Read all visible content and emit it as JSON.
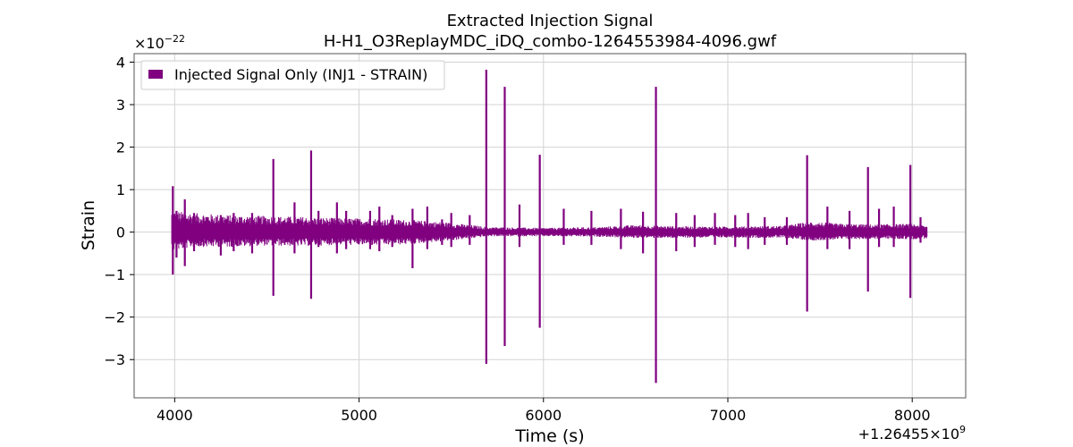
{
  "chart_data": {
    "type": "line",
    "title": "Extracted Injection Signal",
    "subtitle": "H-H1_O3ReplayMDC_iDQ_combo-1264553984-4096.gwf",
    "xlabel": "Time (s)",
    "ylabel": "Strain",
    "x_offset_label": "+1.26455×10",
    "x_offset_exp": "9",
    "y_scale_label": "×10",
    "y_scale_exp": "−22",
    "xlim": [
      3780,
      8290
    ],
    "ylim": [
      -3.9,
      4.2
    ],
    "x_ticks": [
      4000,
      5000,
      6000,
      7000,
      8000
    ],
    "x_tick_labels": [
      "4000",
      "5000",
      "6000",
      "7000",
      "8000"
    ],
    "y_ticks": [
      -3,
      -2,
      -1,
      0,
      1,
      2,
      3,
      4
    ],
    "y_tick_labels": [
      "−3",
      "−2",
      "−1",
      "0",
      "1",
      "2",
      "3",
      "4"
    ],
    "grid": true,
    "legend_position": "top-left",
    "color": "#800080",
    "series": [
      {
        "name": "Injected Signal Only (INJ1 - STRAIN)",
        "x_range": [
          3984,
          8080
        ],
        "band_upper": [
          [
            3984,
            0.5
          ],
          [
            4100,
            0.45
          ],
          [
            4300,
            0.4
          ],
          [
            4500,
            0.38
          ],
          [
            4700,
            0.36
          ],
          [
            4900,
            0.33
          ],
          [
            5100,
            0.32
          ],
          [
            5300,
            0.28
          ],
          [
            5500,
            0.22
          ],
          [
            5700,
            0.12
          ],
          [
            6000,
            0.1
          ],
          [
            6300,
            0.12
          ],
          [
            6500,
            0.17
          ],
          [
            6700,
            0.14
          ],
          [
            7000,
            0.13
          ],
          [
            7300,
            0.15
          ],
          [
            7450,
            0.25
          ],
          [
            7600,
            0.2
          ],
          [
            7800,
            0.18
          ],
          [
            8000,
            0.2
          ],
          [
            8080,
            0.15
          ]
        ],
        "band_lower": [
          [
            3984,
            -0.45
          ],
          [
            4100,
            -0.35
          ],
          [
            4300,
            -0.35
          ],
          [
            4500,
            -0.32
          ],
          [
            4700,
            -0.33
          ],
          [
            4900,
            -0.3
          ],
          [
            5100,
            -0.32
          ],
          [
            5300,
            -0.28
          ],
          [
            5500,
            -0.2
          ],
          [
            5700,
            -0.1
          ],
          [
            6000,
            -0.1
          ],
          [
            6300,
            -0.11
          ],
          [
            6500,
            -0.14
          ],
          [
            6700,
            -0.14
          ],
          [
            7000,
            -0.13
          ],
          [
            7300,
            -0.14
          ],
          [
            7450,
            -0.2
          ],
          [
            7600,
            -0.18
          ],
          [
            7800,
            -0.16
          ],
          [
            8000,
            -0.17
          ],
          [
            8080,
            -0.15
          ]
        ],
        "spikes": [
          [
            3990,
            1.08,
            -1.0
          ],
          [
            4010,
            0.5,
            -0.6
          ],
          [
            4055,
            0.77,
            -0.8
          ],
          [
            4105,
            0.45,
            -0.45
          ],
          [
            4250,
            0.4,
            -0.55
          ],
          [
            4320,
            0.45,
            -0.45
          ],
          [
            4420,
            0.45,
            -0.5
          ],
          [
            4535,
            1.72,
            -1.5
          ],
          [
            4650,
            0.7,
            -0.5
          ],
          [
            4740,
            1.92,
            -1.57
          ],
          [
            4780,
            0.5,
            -0.35
          ],
          [
            4880,
            0.7,
            -0.5
          ],
          [
            4930,
            0.5,
            -0.4
          ],
          [
            5060,
            0.5,
            -0.4
          ],
          [
            5110,
            0.6,
            -0.45
          ],
          [
            5180,
            0.4,
            -0.35
          ],
          [
            5290,
            0.55,
            -0.85
          ],
          [
            5370,
            0.6,
            -0.4
          ],
          [
            5450,
            0.3,
            -0.3
          ],
          [
            5500,
            0.45,
            -0.35
          ],
          [
            5600,
            0.4,
            -0.3
          ],
          [
            5690,
            3.82,
            -3.1
          ],
          [
            5790,
            3.42,
            -2.68
          ],
          [
            5870,
            0.65,
            -0.35
          ],
          [
            5980,
            1.82,
            -2.25
          ],
          [
            6110,
            0.55,
            -0.3
          ],
          [
            6260,
            0.5,
            -0.3
          ],
          [
            6420,
            0.55,
            -0.4
          ],
          [
            6540,
            0.48,
            -0.5
          ],
          [
            6610,
            3.42,
            -3.55
          ],
          [
            6720,
            0.45,
            -0.45
          ],
          [
            6820,
            0.4,
            -0.35
          ],
          [
            6930,
            0.45,
            -0.3
          ],
          [
            7040,
            0.4,
            -0.35
          ],
          [
            7110,
            0.45,
            -0.4
          ],
          [
            7200,
            0.35,
            -0.3
          ],
          [
            7320,
            0.35,
            -0.3
          ],
          [
            7430,
            1.81,
            -1.87
          ],
          [
            7540,
            0.6,
            -0.4
          ],
          [
            7660,
            0.5,
            -0.4
          ],
          [
            7760,
            1.53,
            -1.4
          ],
          [
            7820,
            0.55,
            -0.35
          ],
          [
            7900,
            0.6,
            -0.35
          ],
          [
            7990,
            1.58,
            -1.55
          ],
          [
            8045,
            0.35,
            -0.25
          ]
        ]
      }
    ]
  }
}
